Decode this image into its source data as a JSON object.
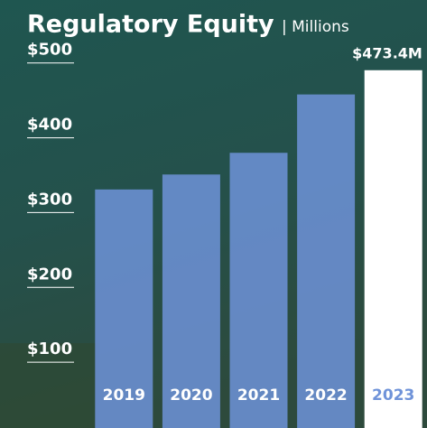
{
  "chart_data": {
    "type": "bar",
    "title": "Regulatory Equity",
    "subtitle": "| Millions",
    "categories": [
      "2019",
      "2020",
      "2021",
      "2022",
      "2023"
    ],
    "values": [
      314,
      334,
      363,
      441,
      473.4
    ],
    "value_labels": [
      null,
      null,
      null,
      null,
      "$473.4M"
    ],
    "colors": [
      "#6f93d9",
      "#6f93d9",
      "#6f93d9",
      "#6f93d9",
      "#ffffff"
    ],
    "ylim": [
      0,
      560
    ],
    "yticks": [
      {
        "value": 100,
        "label": "$100"
      },
      {
        "value": 200,
        "label": "$200"
      },
      {
        "value": 300,
        "label": "$300"
      },
      {
        "value": 400,
        "label": "$400"
      },
      {
        "value": 500,
        "label": "$500"
      }
    ]
  }
}
